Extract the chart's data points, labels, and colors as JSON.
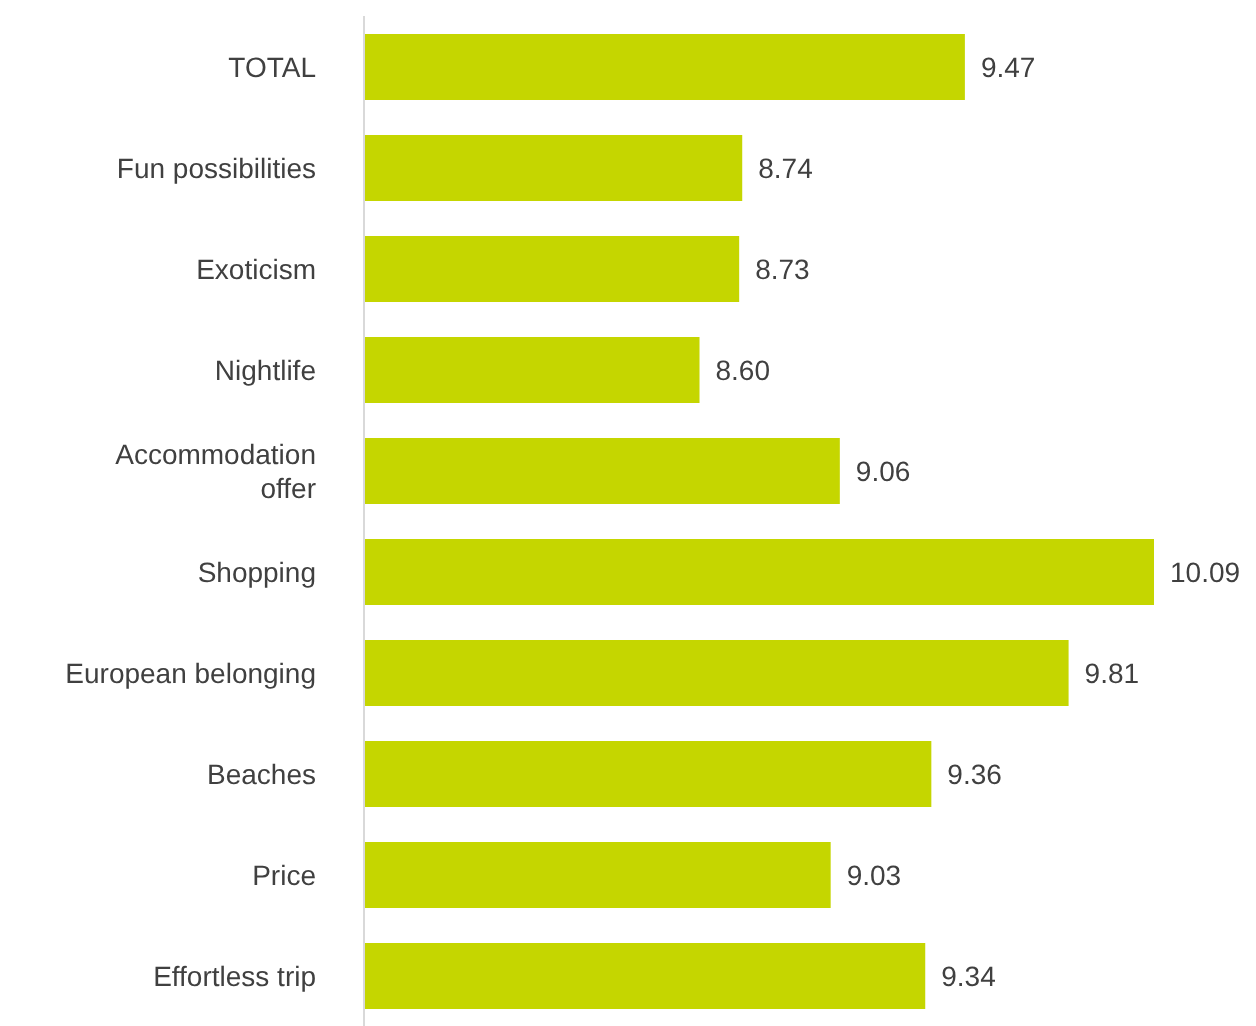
{
  "chart_data": {
    "type": "bar",
    "orientation": "horizontal",
    "categories": [
      "TOTAL",
      "Fun possibilities",
      "Exoticism",
      "Nightlife",
      "Accommodation offer",
      "Shopping",
      "European belonging",
      "Beaches",
      "Price",
      "Effortless trip"
    ],
    "values": [
      9.47,
      8.74,
      8.73,
      8.6,
      9.06,
      10.09,
      9.81,
      9.36,
      9.03,
      9.34
    ],
    "value_labels": [
      "9.47",
      "8.74",
      "8.73",
      "8.60",
      "9.06",
      "10.09",
      "9.81",
      "9.36",
      "9.03",
      "9.34"
    ],
    "color": "#c5d600",
    "xlim": [
      7.5,
      10.09
    ],
    "grid": false,
    "legend": false
  }
}
